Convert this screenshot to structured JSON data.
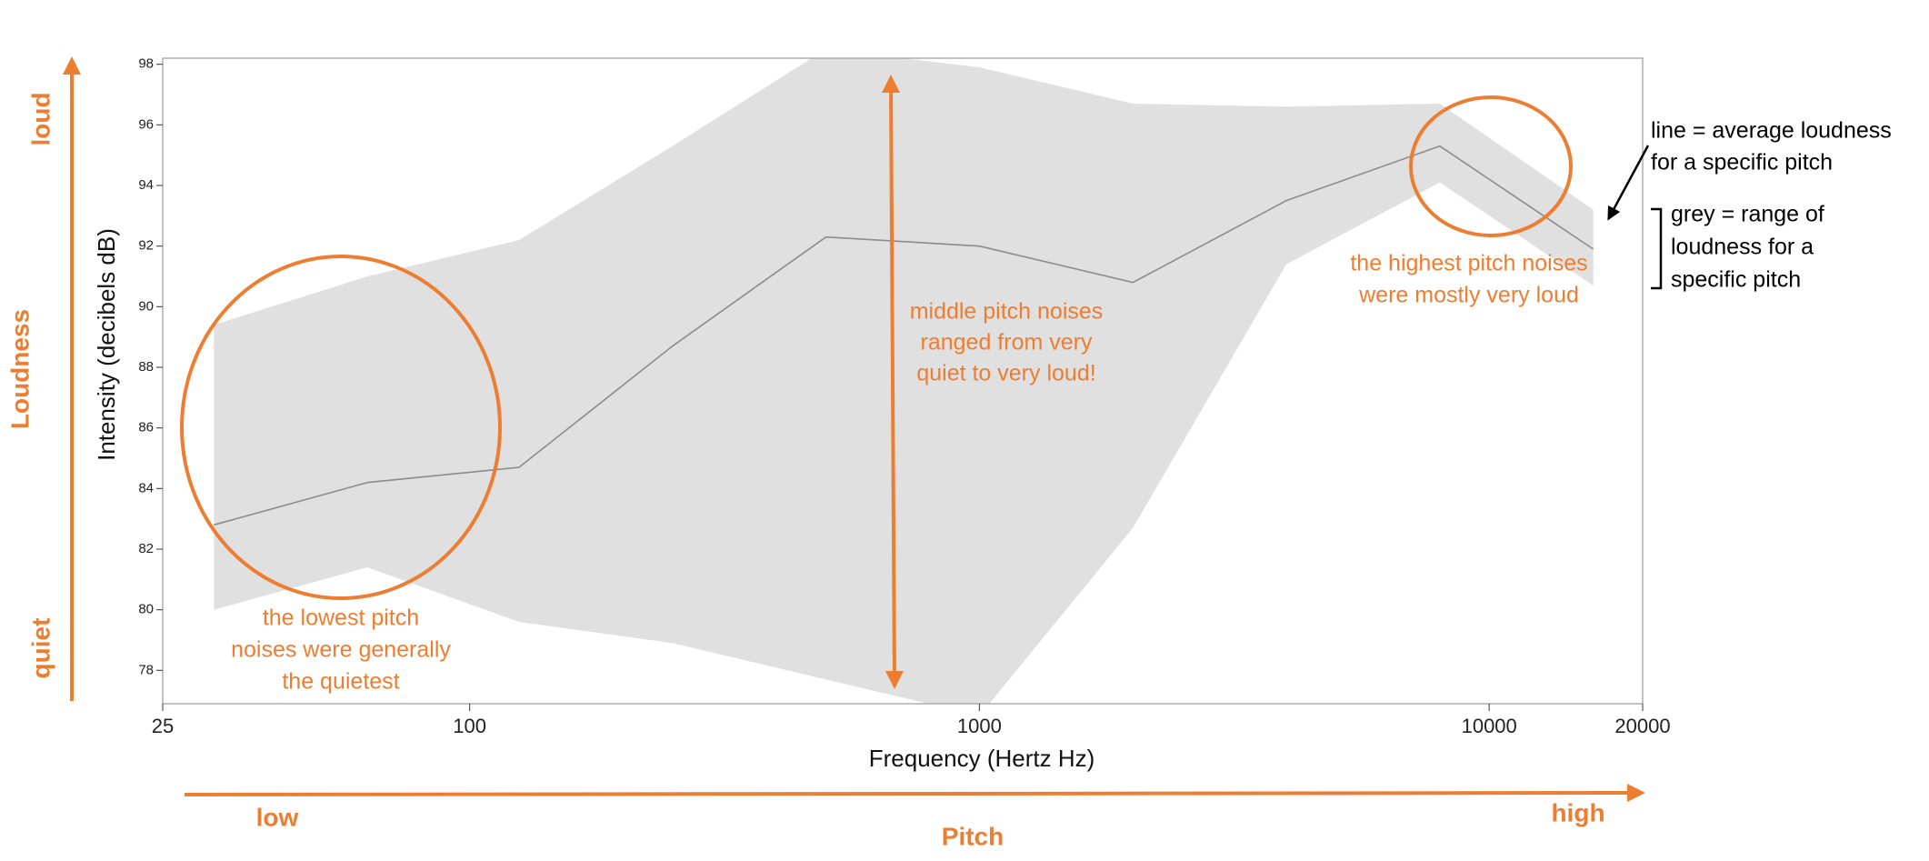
{
  "chart_data": {
    "type": "line",
    "x_label": "Frequency (Hertz Hz)",
    "y_label": "Intensity  (decibels dB)",
    "x": [
      31.5,
      63,
      125,
      250,
      500,
      1000,
      2000,
      4000,
      8000,
      16000
    ],
    "series": [
      {
        "kind": "range",
        "color": "#e0e0e0",
        "high": [
          89.4,
          91.0,
          92.2,
          95.3,
          98.5,
          97.9,
          96.7,
          96.6,
          96.7,
          93.2
        ],
        "low": [
          80.0,
          81.4,
          79.6,
          78.9,
          77.7,
          76.5,
          82.7,
          91.4,
          94.1,
          90.7
        ]
      },
      {
        "kind": "line",
        "color": "#8c8c8c",
        "values": [
          82.8,
          84.2,
          84.7,
          88.7,
          92.3,
          92.0,
          90.8,
          93.5,
          95.3,
          91.9
        ]
      }
    ],
    "xlim": [
      25,
      20000
    ],
    "xticks": [
      25,
      100,
      1000,
      10000,
      20000
    ],
    "x_log": true,
    "ylim": [
      76.9,
      98.2
    ],
    "yticks": [
      78,
      80,
      82,
      84,
      86,
      88,
      90,
      92,
      94,
      96,
      98
    ],
    "annotation_color": "#ed7d31",
    "loudness_axis": {
      "title": "Loudness",
      "high": "loud",
      "low": "quiet"
    },
    "pitch_axis": {
      "title": "Pitch",
      "low": "low",
      "high": "high"
    },
    "annotations": [
      {
        "lines": [
          "the lowest pitch",
          "noises were generally",
          "the quietest"
        ]
      },
      {
        "lines": [
          "middle pitch noises",
          "ranged from very",
          "quiet to very loud!"
        ]
      },
      {
        "lines": [
          "the highest pitch noises",
          "were mostly very loud"
        ]
      }
    ],
    "legend_notes": [
      {
        "lines": [
          "line = average loudness",
          "for a specific pitch"
        ]
      },
      {
        "lines": [
          "grey = range of",
          "loudness for a",
          "specific pitch"
        ]
      }
    ]
  }
}
